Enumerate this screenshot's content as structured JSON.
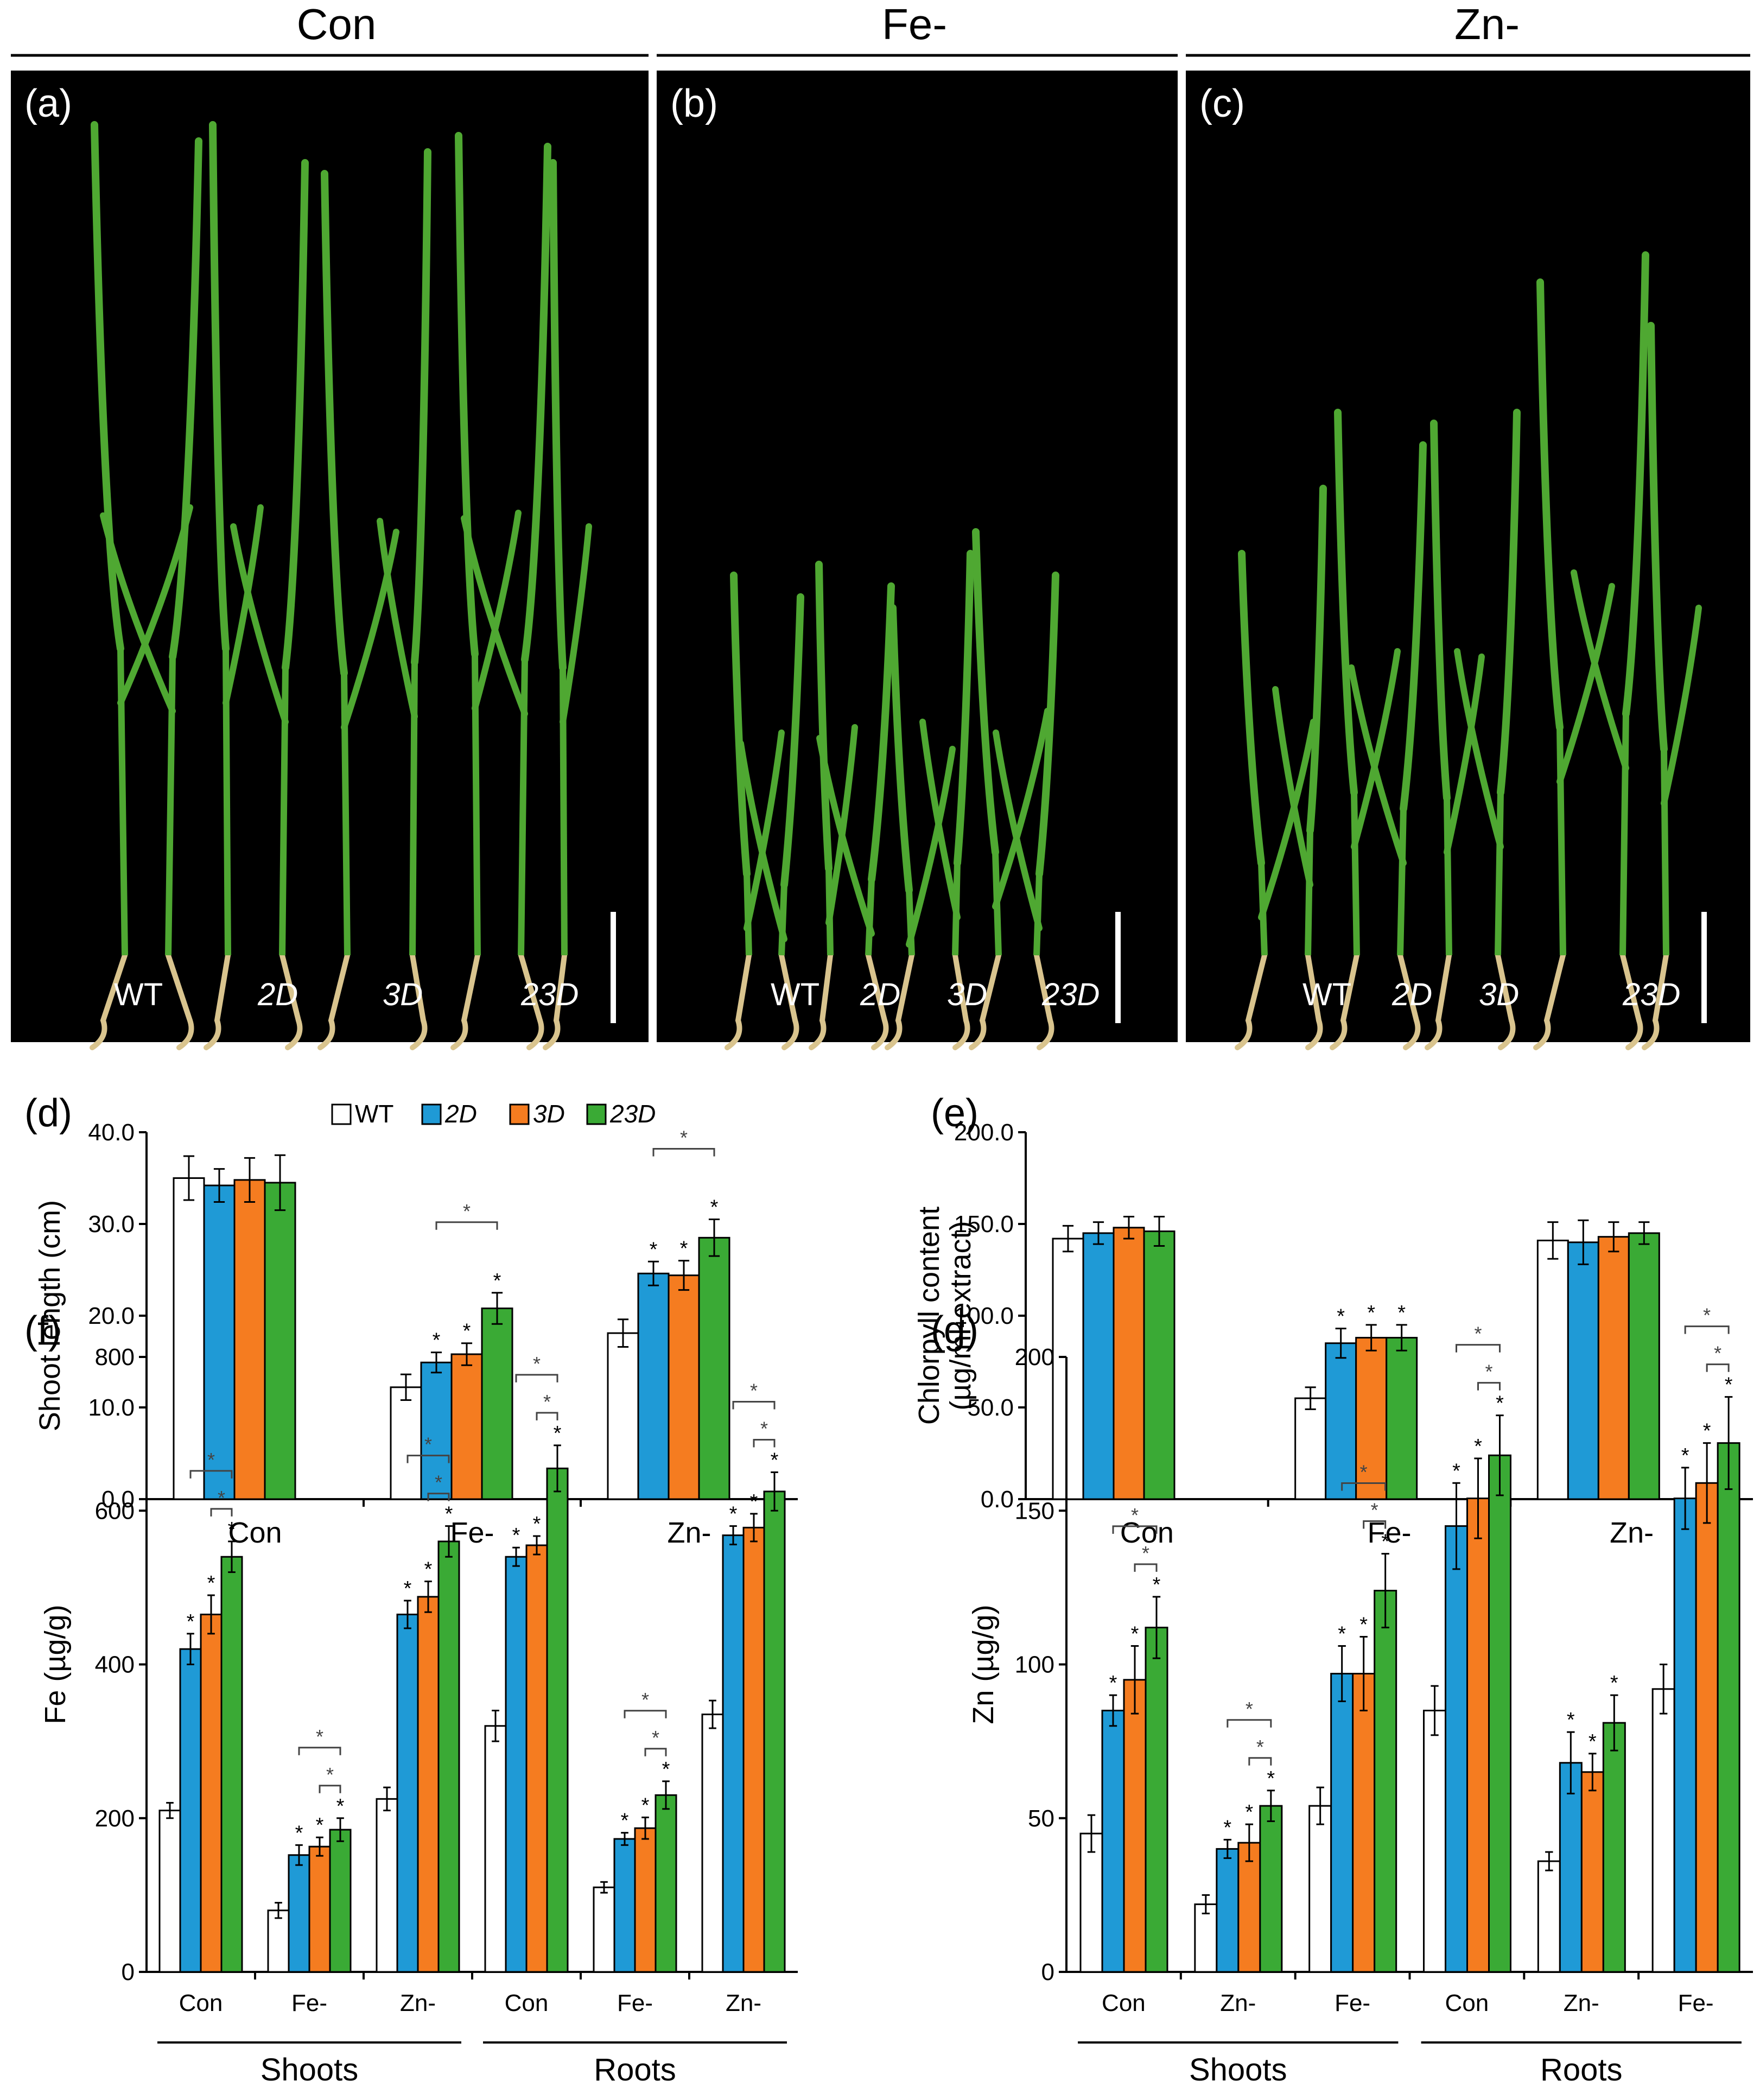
{
  "colors": {
    "WT": "#ffffff",
    "2D": "#1f9ad6",
    "3D": "#f57c20",
    "23D": "#3aaa35",
    "photo_bg": "#000000",
    "plant": "#4fa832",
    "root": "#d9c48e",
    "axis": "#000000",
    "bracket": "#444444"
  },
  "photos": {
    "headers": [
      "Con",
      "Fe-",
      "Zn-"
    ],
    "panels": [
      {
        "letter": "(a)",
        "labels": [
          "WT",
          "2D",
          "3D",
          "23D"
        ]
      },
      {
        "letter": "(b)",
        "labels": [
          "WT",
          "2D",
          "3D",
          "23D"
        ]
      },
      {
        "letter": "(c)",
        "labels": [
          "WT",
          "2D",
          "3D",
          "23D"
        ]
      }
    ]
  },
  "legend": {
    "items": [
      "WT",
      "2D",
      "3D",
      "23D"
    ]
  },
  "chart_data": [
    {
      "id": "d",
      "letter": "(d)",
      "type": "bar",
      "ylabel": "Shoot length (cm)",
      "ylabel2": "",
      "ylim": [
        0,
        40
      ],
      "yticks": [
        "0.0",
        "10.0",
        "20.0",
        "30.0",
        "40.0"
      ],
      "categories": [
        "Con",
        "Fe-",
        "Zn-"
      ],
      "series": [
        {
          "name": "WT",
          "values": [
            35.0,
            12.2,
            18.1
          ],
          "errors": [
            2.4,
            1.4,
            1.5
          ]
        },
        {
          "name": "2D",
          "values": [
            34.2,
            14.9,
            24.6
          ],
          "errors": [
            1.8,
            1.1,
            1.3
          ]
        },
        {
          "name": "3D",
          "values": [
            34.8,
            15.8,
            24.4
          ],
          "errors": [
            2.4,
            1.2,
            1.6
          ]
        },
        {
          "name": "23D",
          "values": [
            34.5,
            20.8,
            28.5
          ],
          "errors": [
            3.0,
            1.7,
            2.0
          ]
        }
      ],
      "stars": [
        [
          false,
          false,
          false,
          false
        ],
        [
          false,
          true,
          true,
          true
        ],
        [
          false,
          true,
          true,
          true
        ]
      ],
      "brackets": [
        [
          1,
          1
        ],
        [
          2,
          1
        ]
      ],
      "groups": [],
      "star_symbol": "*"
    },
    {
      "id": "e",
      "letter": "(e)",
      "type": "bar",
      "ylabel": "Chlorpyll content",
      "ylabel2": "(µg/ml-extract)",
      "ylim": [
        0,
        200
      ],
      "yticks": [
        "0.0",
        "50.0",
        "100.0",
        "150.0",
        "200.0"
      ],
      "categories": [
        "Con",
        "Fe-",
        "Zn-"
      ],
      "series": [
        {
          "name": "WT",
          "values": [
            142,
            55,
            141
          ],
          "errors": [
            7,
            6,
            10
          ]
        },
        {
          "name": "2D",
          "values": [
            145,
            85,
            140
          ],
          "errors": [
            6,
            8,
            12
          ]
        },
        {
          "name": "3D",
          "values": [
            148,
            88,
            143
          ],
          "errors": [
            6,
            7,
            8
          ]
        },
        {
          "name": "23D",
          "values": [
            146,
            88,
            145
          ],
          "errors": [
            8,
            7,
            6
          ]
        }
      ],
      "stars": [
        [
          false,
          false,
          false,
          false
        ],
        [
          false,
          true,
          true,
          true
        ],
        [
          false,
          false,
          false,
          false
        ]
      ],
      "brackets": [],
      "groups": [],
      "star_symbol": "*"
    },
    {
      "id": "f",
      "letter": "(f)",
      "type": "bar",
      "ylabel": "Fe (µg/g)",
      "ylabel2": "",
      "ylim": [
        0,
        800
      ],
      "yticks": [
        "0",
        "200",
        "400",
        "600",
        "800"
      ],
      "categories": [
        "Con",
        "Fe-",
        "Zn-",
        "Con",
        "Fe-",
        "Zn-"
      ],
      "series": [
        {
          "name": "WT",
          "values": [
            210,
            80,
            225,
            320,
            110,
            335
          ],
          "errors": [
            10,
            10,
            15,
            20,
            7,
            18
          ]
        },
        {
          "name": "2D",
          "values": [
            420,
            152,
            465,
            540,
            173,
            568
          ],
          "errors": [
            20,
            13,
            18,
            12,
            8,
            12
          ]
        },
        {
          "name": "3D",
          "values": [
            465,
            163,
            488,
            555,
            187,
            578
          ],
          "errors": [
            25,
            12,
            20,
            12,
            14,
            18
          ]
        },
        {
          "name": "23D",
          "values": [
            540,
            185,
            560,
            655,
            230,
            625
          ],
          "errors": [
            20,
            15,
            20,
            30,
            18,
            25
          ]
        }
      ],
      "stars": [
        [
          false,
          true,
          true,
          true
        ],
        [
          false,
          true,
          true,
          true
        ],
        [
          false,
          true,
          true,
          true
        ],
        [
          false,
          true,
          true,
          true
        ],
        [
          false,
          true,
          true,
          true
        ],
        [
          false,
          true,
          true,
          true
        ]
      ],
      "brackets": [
        [
          0,
          1
        ],
        [
          0,
          2
        ],
        [
          1,
          1
        ],
        [
          1,
          2
        ],
        [
          2,
          1
        ],
        [
          2,
          2
        ],
        [
          3,
          1
        ],
        [
          3,
          2
        ],
        [
          4,
          1
        ],
        [
          4,
          2
        ],
        [
          5,
          1
        ],
        [
          5,
          2
        ]
      ],
      "groups": [
        "Shoots",
        "Roots"
      ],
      "star_symbol": "*"
    },
    {
      "id": "g",
      "letter": "(g)",
      "type": "bar",
      "ylabel": "Zn (µg/g)",
      "ylabel2": "",
      "ylim": [
        0,
        200
      ],
      "yticks": [
        "0",
        "50",
        "100",
        "150",
        "200"
      ],
      "categories": [
        "Con",
        "Zn-",
        "Fe-",
        "Con",
        "Zn-",
        "Fe-"
      ],
      "series": [
        {
          "name": "WT",
          "values": [
            45,
            22,
            54,
            85,
            36,
            92
          ],
          "errors": [
            6,
            3,
            6,
            8,
            3,
            8
          ]
        },
        {
          "name": "2D",
          "values": [
            85,
            40,
            97,
            145,
            68,
            154
          ],
          "errors": [
            5,
            3,
            9,
            14,
            10,
            10
          ]
        },
        {
          "name": "3D",
          "values": [
            95,
            42,
            97,
            154,
            65,
            159
          ],
          "errors": [
            11,
            6,
            12,
            13,
            6,
            13
          ]
        },
        {
          "name": "23D",
          "values": [
            112,
            54,
            124,
            168,
            81,
            172
          ],
          "errors": [
            10,
            5,
            12,
            13,
            9,
            15
          ]
        }
      ],
      "stars": [
        [
          false,
          true,
          true,
          true
        ],
        [
          false,
          true,
          true,
          true
        ],
        [
          false,
          true,
          true,
          true
        ],
        [
          false,
          true,
          true,
          true
        ],
        [
          false,
          true,
          true,
          true
        ],
        [
          false,
          true,
          true,
          true
        ]
      ],
      "brackets": [
        [
          0,
          1
        ],
        [
          0,
          2
        ],
        [
          1,
          1
        ],
        [
          1,
          2
        ],
        [
          2,
          1
        ],
        [
          2,
          2
        ],
        [
          3,
          1
        ],
        [
          3,
          2
        ],
        [
          5,
          1
        ],
        [
          5,
          2
        ]
      ],
      "groups": [
        "Shoots",
        "Roots"
      ],
      "star_symbol": "*"
    }
  ]
}
